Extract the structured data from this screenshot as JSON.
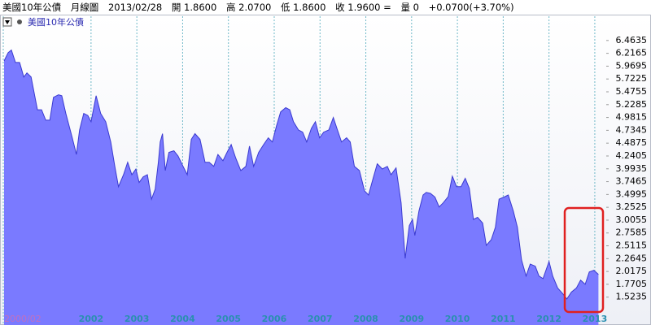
{
  "header": {
    "name": "美國10年公債",
    "period": "月線圖",
    "date": "2013/02/28",
    "open": "開 1.8600",
    "high": "高 2.0700",
    "low": "低 1.8600",
    "close": "收 1.9600 =",
    "volume": "量 0",
    "change": "+0.0700(+3.70%)"
  },
  "chart_data": {
    "type": "area",
    "color": "#7a7aff",
    "line_color": "#3a3ad0",
    "series": [
      {
        "name": "美國10年公債",
        "x": [
          2000.1,
          2000.19,
          2000.26,
          2000.35,
          2000.44,
          2000.53,
          2000.6,
          2000.69,
          2000.83,
          2000.92,
          2001.01,
          2001.1,
          2001.18,
          2001.29,
          2001.36,
          2001.45,
          2001.59,
          2001.68,
          2001.75,
          2001.84,
          2001.93,
          2002.0,
          2002.11,
          2002.21,
          2002.32,
          2002.43,
          2002.52,
          2002.6,
          2002.71,
          2002.8,
          2002.89,
          2002.98,
          2003.05,
          2003.14,
          2003.23,
          2003.32,
          2003.4,
          2003.47,
          2003.51,
          2003.56,
          2003.62,
          2003.7,
          2003.81,
          2003.9,
          2004.01,
          2004.1,
          2004.19,
          2004.27,
          2004.38,
          2004.49,
          2004.58,
          2004.68,
          2004.77,
          2004.88,
          2004.97,
          2005.06,
          2005.16,
          2005.27,
          2005.38,
          2005.46,
          2005.55,
          2005.66,
          2005.77,
          2005.87,
          2005.96,
          2006.05,
          2006.14,
          2006.25,
          2006.34,
          2006.42,
          2006.53,
          2006.62,
          2006.71,
          2006.81,
          2006.9,
          2006.99,
          2007.08,
          2007.19,
          2007.29,
          2007.38,
          2007.47,
          2007.58,
          2007.66,
          2007.75,
          2007.86,
          2007.97,
          2008.06,
          2008.16,
          2008.25,
          2008.36,
          2008.47,
          2008.55,
          2008.66,
          2008.77,
          2008.86,
          2008.95,
          2009.02,
          2009.07,
          2009.16,
          2009.25,
          2009.32,
          2009.41,
          2009.51,
          2009.6,
          2009.69,
          2009.8,
          2009.89,
          2009.98,
          2010.08,
          2010.17,
          2010.26,
          2010.35,
          2010.44,
          2010.55,
          2010.63,
          2010.74,
          2010.83,
          2010.91,
          2011.02,
          2011.11,
          2011.22,
          2011.31,
          2011.4,
          2011.5,
          2011.59,
          2011.7,
          2011.78,
          2011.87,
          2012.0,
          2012.08,
          2012.19,
          2012.3,
          2012.39,
          2012.49,
          2012.6,
          2012.69,
          2012.79,
          2012.88,
          2012.98,
          2013.08
        ],
        "values": [
          6.07,
          6.23,
          6.28,
          6.04,
          6.04,
          5.76,
          5.84,
          5.76,
          5.13,
          5.13,
          4.93,
          4.93,
          5.37,
          5.42,
          5.4,
          5.06,
          4.59,
          4.27,
          4.74,
          5.06,
          5.02,
          4.9,
          5.4,
          5.06,
          4.9,
          4.51,
          4.04,
          3.65,
          3.88,
          4.12,
          3.88,
          3.99,
          3.73,
          3.84,
          3.88,
          3.41,
          3.6,
          4.12,
          4.51,
          4.67,
          3.96,
          4.31,
          4.34,
          4.24,
          4.04,
          3.88,
          4.56,
          4.67,
          4.56,
          4.12,
          4.12,
          4.04,
          4.27,
          4.15,
          4.31,
          4.46,
          4.2,
          3.96,
          4.04,
          4.43,
          4.04,
          4.31,
          4.46,
          4.59,
          4.51,
          4.82,
          5.09,
          5.17,
          5.13,
          4.9,
          4.74,
          4.7,
          4.51,
          4.77,
          4.9,
          4.59,
          4.7,
          4.74,
          4.98,
          4.74,
          4.51,
          4.59,
          4.51,
          4.04,
          3.96,
          3.57,
          3.49,
          3.81,
          4.09,
          3.99,
          4.04,
          3.88,
          4.01,
          3.34,
          2.27,
          2.9,
          3.02,
          2.71,
          3.18,
          3.49,
          3.54,
          3.52,
          3.45,
          3.26,
          3.34,
          3.46,
          3.85,
          3.65,
          3.65,
          3.81,
          3.62,
          3.02,
          3.06,
          2.95,
          2.52,
          2.63,
          2.87,
          3.41,
          3.45,
          3.49,
          3.18,
          2.87,
          2.24,
          1.93,
          2.16,
          2.12,
          1.93,
          1.88,
          2.21,
          1.93,
          1.7,
          1.59,
          1.49,
          1.62,
          1.7,
          1.85,
          1.77,
          2.01,
          2.04,
          1.96
        ]
      }
    ],
    "xlim": [
      2000.083,
      2013.25
    ],
    "xticks": [
      {
        "value": 2000.083,
        "label": "2000/02"
      },
      2002,
      2003,
      2004,
      2005,
      2006,
      2007,
      2008,
      2009,
      2010,
      2011,
      2012,
      2013
    ],
    "ylim": [
      1.3,
      6.93
    ],
    "yticks": [
      6.4635,
      6.2165,
      5.9695,
      5.7225,
      5.4755,
      5.2285,
      4.9815,
      4.7345,
      4.4875,
      4.2405,
      3.9935,
      3.7465,
      3.4995,
      3.2525,
      3.0055,
      2.7585,
      2.5115,
      2.2645,
      2.0175,
      1.7705,
      1.5235
    ],
    "grid": true
  }
}
